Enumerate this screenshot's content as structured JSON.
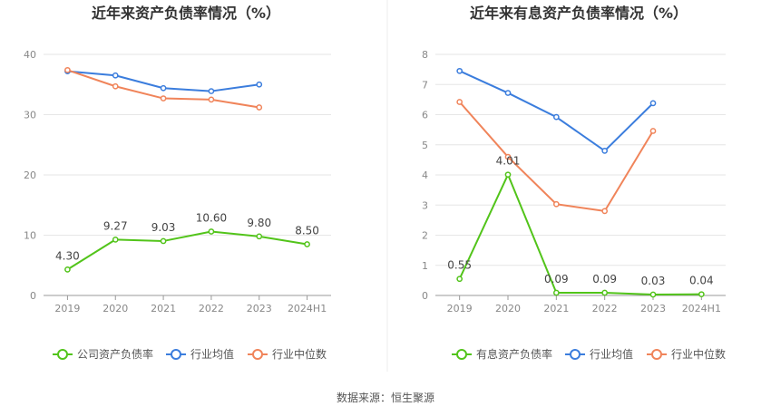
{
  "source": "数据来源：恒生聚源",
  "chart_data": [
    {
      "type": "line",
      "title": "近年来资产负债率情况（%）",
      "categories": [
        "2019",
        "2020",
        "2021",
        "2022",
        "2023",
        "2024H1"
      ],
      "ylim": [
        0,
        40
      ],
      "yticks": [
        "0",
        "10",
        "20",
        "30",
        "40"
      ],
      "grid": true,
      "legend": "bottom",
      "series": [
        {
          "name": "公司资产负债率",
          "color": "#52c41a",
          "values": [
            4.3,
            9.27,
            9.03,
            10.6,
            9.8,
            8.5
          ],
          "labels": [
            "4.30",
            "9.27",
            "9.03",
            "10.60",
            "9.80",
            "8.50"
          ]
        },
        {
          "name": "行业均值",
          "color": "#3b7ddd",
          "values": [
            37.2,
            36.5,
            34.4,
            33.9,
            35.0,
            null
          ],
          "labels": []
        },
        {
          "name": "行业中位数",
          "color": "#f0845a",
          "values": [
            37.4,
            34.7,
            32.7,
            32.5,
            31.2,
            null
          ],
          "labels": []
        }
      ]
    },
    {
      "type": "line",
      "title": "近年来有息资产负债率情况（%）",
      "categories": [
        "2019",
        "2020",
        "2021",
        "2022",
        "2023",
        "2024H1"
      ],
      "ylim": [
        0,
        8
      ],
      "yticks": [
        "0",
        "1",
        "2",
        "3",
        "4",
        "5",
        "6",
        "7",
        "8"
      ],
      "grid": true,
      "legend": "bottom",
      "series": [
        {
          "name": "有息资产负债率",
          "color": "#52c41a",
          "values": [
            0.55,
            4.01,
            0.09,
            0.09,
            0.03,
            0.04
          ],
          "labels": [
            "0.55",
            "4.01",
            "0.09",
            "0.09",
            "0.03",
            "0.04"
          ]
        },
        {
          "name": "行业均值",
          "color": "#3b7ddd",
          "values": [
            7.45,
            6.72,
            5.92,
            4.8,
            6.38,
            null
          ],
          "labels": []
        },
        {
          "name": "行业中位数",
          "color": "#f0845a",
          "values": [
            6.42,
            4.6,
            3.03,
            2.8,
            5.46,
            null
          ],
          "labels": []
        }
      ]
    }
  ]
}
